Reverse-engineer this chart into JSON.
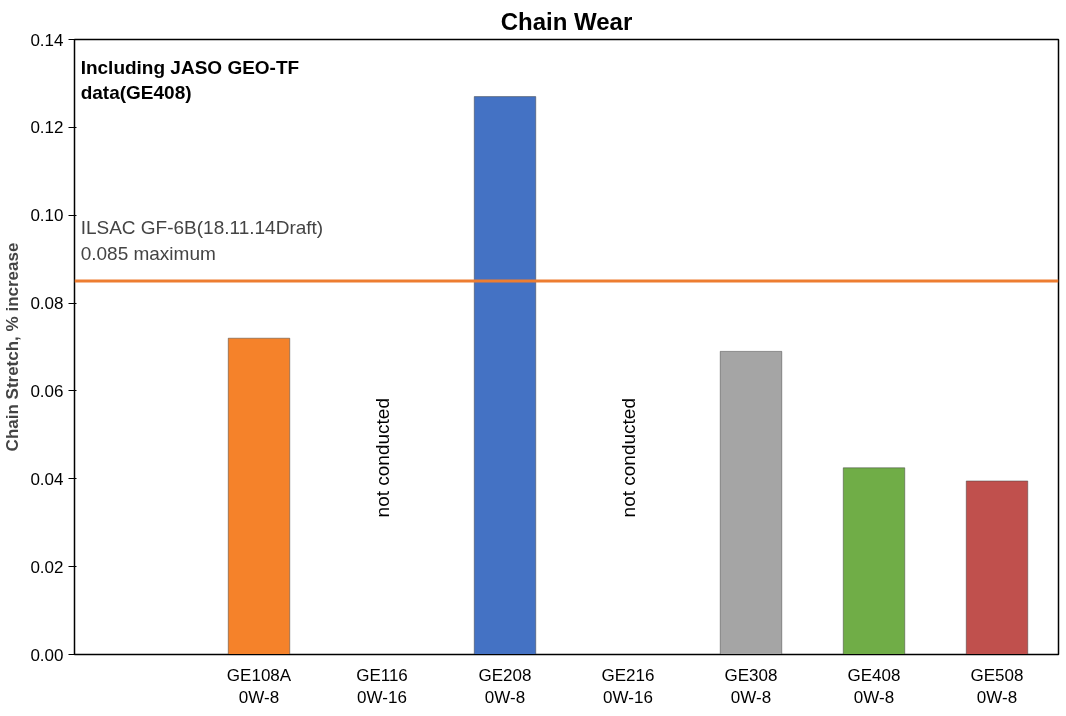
{
  "chart_data": {
    "type": "bar",
    "title": "Chain Wear",
    "ylabel": "Chain Stretch, % increase",
    "categories": [
      null,
      "GE108A\n0W-8",
      "GE116\n0W-16",
      "GE208\n0W-8",
      "GE216\n0W-16",
      "GE308\n0W-8",
      "GE408\n0W-8",
      "GE508\n0W-8"
    ],
    "values": [
      null,
      0.072,
      null,
      0.127,
      null,
      0.069,
      0.0425,
      0.0395
    ],
    "colors": [
      "#f5822a",
      "#f5822a",
      "#4472c4",
      "#4472c4",
      "#a5a5a5",
      "#a5a5a5",
      "#70ad47",
      "#c0504d"
    ],
    "ylim": [
      0,
      0.14
    ],
    "yticks": [
      {
        "value": 0,
        "label": "0.00"
      },
      {
        "value": 0.02,
        "label": "0.02"
      },
      {
        "value": 0.04,
        "label": "0.04"
      },
      {
        "value": 0.06,
        "label": "0.06"
      },
      {
        "value": 0.08,
        "label": "0.08"
      },
      {
        "value": 0.1,
        "label": "0.10"
      },
      {
        "value": 0.12,
        "label": "0.12"
      },
      {
        "value": 0.14,
        "label": "0.14"
      }
    ],
    "grid": false,
    "ref_lines": [
      {
        "axis": "y",
        "value": 0.085,
        "label": "ILSAC GF-6B(18.11.14Draft)\n0.085 maximum",
        "color": "#ed7d31"
      }
    ],
    "annotations": [
      "Including JASO GEO-TF\ndata(GE408)",
      "not conducted",
      "not conducted"
    ]
  }
}
